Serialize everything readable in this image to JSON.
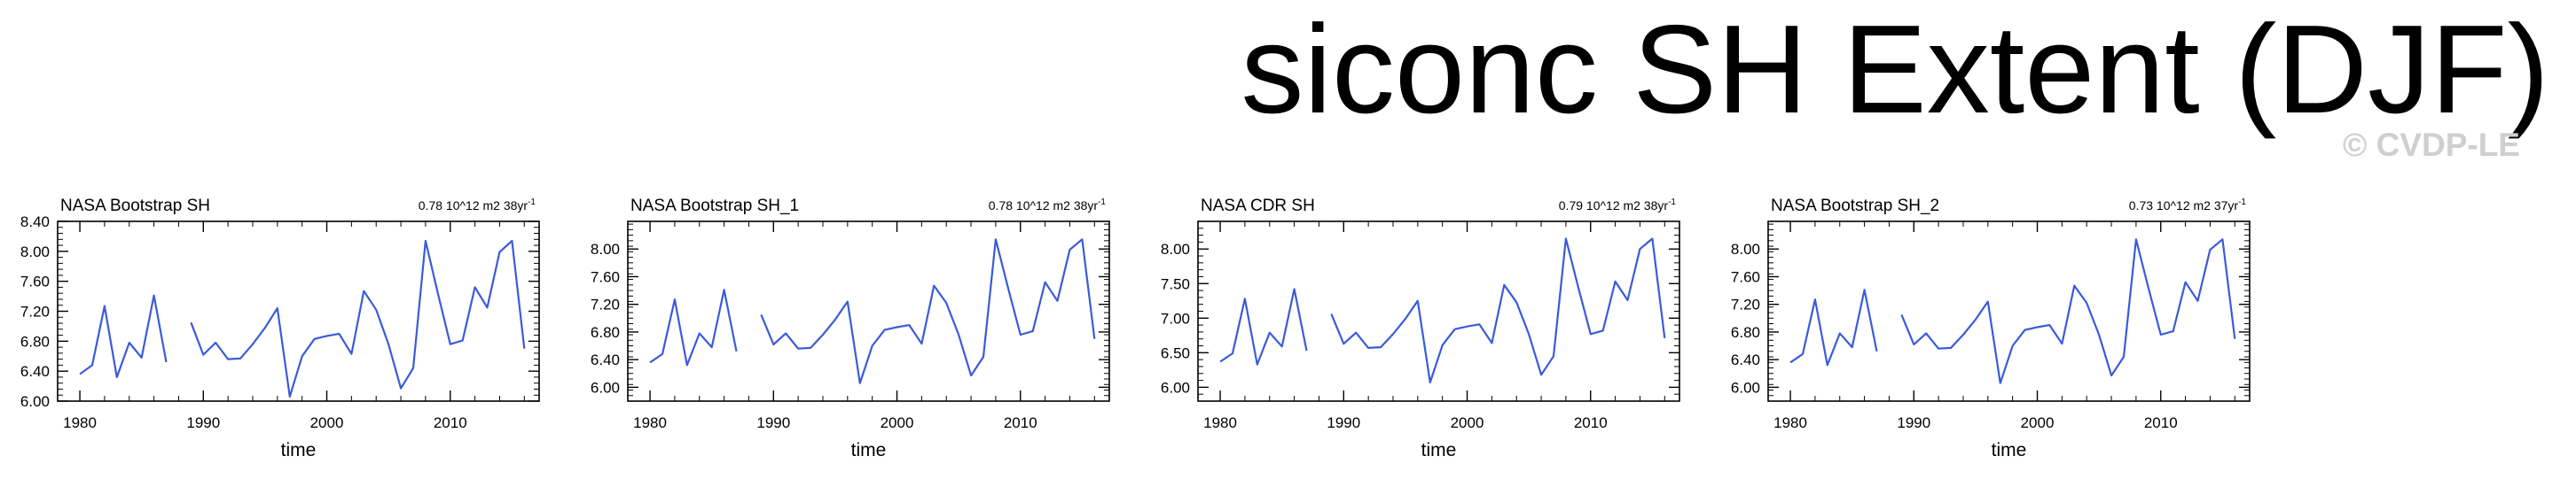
{
  "page_title": "siconc SH Extent (DJF)",
  "watermark": "© CVDP-LE",
  "colors": {
    "line": "#3a5bd9",
    "axis": "#000000",
    "watermark": "#cfcfcf"
  },
  "chart_data": [
    {
      "type": "line",
      "title": "NASA Bootstrap SH",
      "trend_text": "0.78 10^12 m2 38yr",
      "trend_superscript": "-1",
      "xlabel": "time",
      "ylabel": "",
      "xlim": [
        1978.2,
        2017.2
      ],
      "ylim": [
        6.0,
        8.4
      ],
      "xticks": [
        1980,
        1990,
        2000,
        2010
      ],
      "xtick_labels": [
        "1980",
        "1990",
        "2000",
        "2010"
      ],
      "yticks": [
        6.0,
        6.4,
        6.8,
        7.2,
        7.6,
        8.0,
        8.4
      ],
      "ytick_labels": [
        "6.00",
        "6.40",
        "6.80",
        "7.20",
        "7.60",
        "8.00",
        "8.40"
      ],
      "x": [
        1980,
        1981,
        1982,
        1983,
        1984,
        1985,
        1986,
        1987,
        1988,
        1989,
        1990,
        1991,
        1992,
        1993,
        1994,
        1995,
        1996,
        1997,
        1998,
        1999,
        2000,
        2001,
        2002,
        2003,
        2004,
        2005,
        2006,
        2007,
        2008,
        2009,
        2010,
        2011,
        2012,
        2013,
        2014,
        2015,
        2016
      ],
      "values": [
        6.36,
        6.48,
        7.27,
        6.32,
        6.78,
        6.58,
        7.41,
        6.52,
        null,
        7.05,
        6.62,
        6.78,
        6.56,
        6.57,
        6.76,
        6.98,
        7.24,
        6.06,
        6.6,
        6.83,
        6.87,
        6.9,
        6.63,
        7.47,
        7.22,
        6.76,
        6.17,
        6.44,
        8.14,
        7.44,
        6.76,
        6.81,
        7.52,
        7.25,
        7.99,
        8.14,
        6.7
      ]
    },
    {
      "type": "line",
      "title": "NASA Bootstrap SH_1",
      "trend_text": "0.78 10^12 m2 38yr",
      "trend_superscript": "-1",
      "xlabel": "time",
      "ylabel": "",
      "xlim": [
        1978.2,
        2017.2
      ],
      "ylim": [
        5.8,
        8.4
      ],
      "xticks": [
        1980,
        1990,
        2000,
        2010
      ],
      "xtick_labels": [
        "1980",
        "1990",
        "2000",
        "2010"
      ],
      "yticks": [
        6.0,
        6.4,
        6.8,
        7.2,
        7.6,
        8.0
      ],
      "ytick_labels": [
        "6.00",
        "6.40",
        "6.80",
        "7.20",
        "7.60",
        "8.00"
      ],
      "x": [
        1980,
        1981,
        1982,
        1983,
        1984,
        1985,
        1986,
        1987,
        1988,
        1989,
        1990,
        1991,
        1992,
        1993,
        1994,
        1995,
        1996,
        1997,
        1998,
        1999,
        2000,
        2001,
        2002,
        2003,
        2004,
        2005,
        2006,
        2007,
        2008,
        2009,
        2010,
        2011,
        2012,
        2013,
        2014,
        2015,
        2016
      ],
      "values": [
        6.36,
        6.48,
        7.27,
        6.32,
        6.78,
        6.58,
        7.41,
        6.52,
        null,
        7.05,
        6.62,
        6.78,
        6.56,
        6.57,
        6.76,
        6.98,
        7.24,
        6.06,
        6.6,
        6.83,
        6.87,
        6.9,
        6.63,
        7.47,
        7.22,
        6.76,
        6.17,
        6.44,
        8.14,
        7.44,
        6.76,
        6.81,
        7.52,
        7.25,
        7.99,
        8.14,
        6.7
      ]
    },
    {
      "type": "line",
      "title": "NASA CDR SH",
      "trend_text": "0.79 10^12 m2 38yr",
      "trend_superscript": "-1",
      "xlabel": "time",
      "ylabel": "",
      "xlim": [
        1978.2,
        2017.2
      ],
      "ylim": [
        5.8,
        8.4
      ],
      "xticks": [
        1980,
        1990,
        2000,
        2010
      ],
      "xtick_labels": [
        "1980",
        "1990",
        "2000",
        "2010"
      ],
      "yticks": [
        6.0,
        6.5,
        7.0,
        7.5,
        8.0
      ],
      "ytick_labels": [
        "6.00",
        "6.50",
        "7.00",
        "7.50",
        "8.00"
      ],
      "x": [
        1980,
        1981,
        1982,
        1983,
        1984,
        1985,
        1986,
        1987,
        1988,
        1989,
        1990,
        1991,
        1992,
        1993,
        1994,
        1995,
        1996,
        1997,
        1998,
        1999,
        2000,
        2001,
        2002,
        2003,
        2004,
        2005,
        2006,
        2007,
        2008,
        2009,
        2010,
        2011,
        2012,
        2013,
        2014,
        2015,
        2016
      ],
      "values": [
        6.37,
        6.49,
        7.28,
        6.33,
        6.79,
        6.59,
        7.42,
        6.53,
        null,
        7.06,
        6.63,
        6.79,
        6.57,
        6.58,
        6.77,
        6.99,
        7.25,
        6.07,
        6.61,
        6.84,
        6.88,
        6.91,
        6.64,
        7.48,
        7.23,
        6.77,
        6.18,
        6.45,
        8.15,
        7.45,
        6.77,
        6.82,
        7.53,
        7.26,
        8.0,
        8.15,
        6.71
      ]
    },
    {
      "type": "line",
      "title": "NASA Bootstrap SH_2",
      "trend_text": "0.73 10^12 m2 37yr",
      "trend_superscript": "-1",
      "xlabel": "time",
      "ylabel": "",
      "xlim": [
        1978.2,
        2017.2
      ],
      "ylim": [
        5.8,
        8.4
      ],
      "xticks": [
        1980,
        1990,
        2000,
        2010
      ],
      "xtick_labels": [
        "1980",
        "1990",
        "2000",
        "2010"
      ],
      "yticks": [
        6.0,
        6.4,
        6.8,
        7.2,
        7.6,
        8.0
      ],
      "ytick_labels": [
        "6.00",
        "6.40",
        "6.80",
        "7.20",
        "7.60",
        "8.00"
      ],
      "x": [
        1980,
        1981,
        1982,
        1983,
        1984,
        1985,
        1986,
        1987,
        1988,
        1989,
        1990,
        1991,
        1992,
        1993,
        1994,
        1995,
        1996,
        1997,
        1998,
        1999,
        2000,
        2001,
        2002,
        2003,
        2004,
        2005,
        2006,
        2007,
        2008,
        2009,
        2010,
        2011,
        2012,
        2013,
        2014,
        2015,
        2016
      ],
      "values": [
        6.36,
        6.48,
        7.27,
        6.32,
        6.78,
        6.58,
        7.41,
        6.52,
        null,
        7.05,
        6.62,
        6.78,
        6.56,
        6.57,
        6.76,
        6.98,
        7.24,
        6.06,
        6.6,
        6.83,
        6.87,
        6.9,
        6.63,
        7.47,
        7.22,
        6.76,
        6.17,
        6.44,
        8.14,
        7.44,
        6.76,
        6.81,
        7.52,
        7.25,
        7.99,
        8.14,
        6.7
      ]
    }
  ]
}
